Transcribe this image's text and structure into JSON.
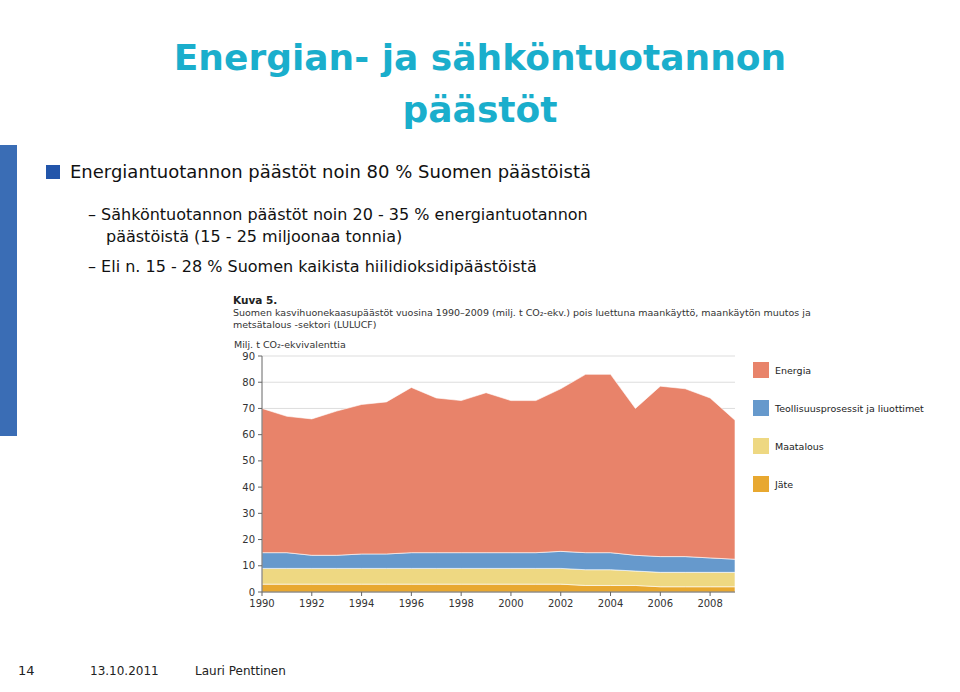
{
  "slide": {
    "title": [
      "Energian- ja sähköntuotannon",
      "päästöt"
    ],
    "title_color": "#1AAECC",
    "bullet_color": "#2255AA",
    "left_bar_color": "#3A6DB5",
    "bullet": "Energiantuotannon päästöt noin 80 % Suomen päästöistä",
    "sub_bullets": [
      "–  Sähköntuotannon päästöt noin 20 - 35 % energiantuotannon",
      "päästöistä (15 - 25 miljoonaa tonnia)",
      "–  Eli n. 15 - 28 % Suomen kaikista hiilidioksidipäästöistä"
    ],
    "caption": [
      "Kuva 5.",
      "Suomen kasvihuonekaasupäästöt vuosina 1990–2009 (milj. t CO₂-ekv.) pois luettuna maankäyttö, maankäytön muutos ja",
      "metsätalous -sektori (LULUCF)"
    ],
    "footer": [
      "14",
      "13.10.2011",
      "Lauri Penttinen"
    ]
  },
  "chart_data": {
    "type": "area",
    "stacked": true,
    "y_label": "Milj. t CO₂-ekvivalenttia",
    "x": [
      1990,
      1991,
      1992,
      1993,
      1994,
      1995,
      1996,
      1997,
      1998,
      1999,
      2000,
      2001,
      2002,
      2003,
      2004,
      2005,
      2006,
      2007,
      2008,
      2009
    ],
    "series": [
      {
        "name": "Jäte",
        "color": "#E8A830",
        "values": [
          3,
          3,
          3,
          3,
          3,
          3,
          3,
          3,
          3,
          3,
          3,
          3,
          3,
          2.5,
          2.5,
          2.5,
          2,
          2,
          2,
          2
        ]
      },
      {
        "name": "Maatalous",
        "color": "#EED882",
        "values": [
          6,
          6,
          6,
          6,
          6,
          6,
          6,
          6,
          6,
          6,
          6,
          6,
          6,
          6,
          6,
          5.5,
          5.5,
          5.5,
          5.5,
          5.5
        ]
      },
      {
        "name": "Teollisuusprosessit ja liuottimet",
        "color": "#6699CC",
        "values": [
          6,
          6,
          5,
          5,
          5.5,
          5.5,
          6,
          6,
          6,
          6,
          6,
          6,
          6.5,
          6.5,
          6.5,
          6,
          6,
          6,
          5.5,
          5
        ]
      },
      {
        "name": "Energia",
        "color": "#E8836A",
        "values": [
          55,
          52,
          52,
          55,
          57,
          58,
          63,
          59,
          58,
          61,
          58,
          58,
          62,
          68,
          68,
          56,
          65,
          64,
          61,
          53
        ]
      }
    ],
    "xlim": [
      1990,
      2009
    ],
    "xticks": [
      1990,
      1992,
      1994,
      1996,
      1998,
      2000,
      2002,
      2004,
      2006,
      2008
    ],
    "ylim": [
      0,
      90
    ],
    "yticks": [
      0,
      10,
      20,
      30,
      40,
      50,
      60,
      70,
      80,
      90
    ],
    "grid": true,
    "legend": "right"
  }
}
